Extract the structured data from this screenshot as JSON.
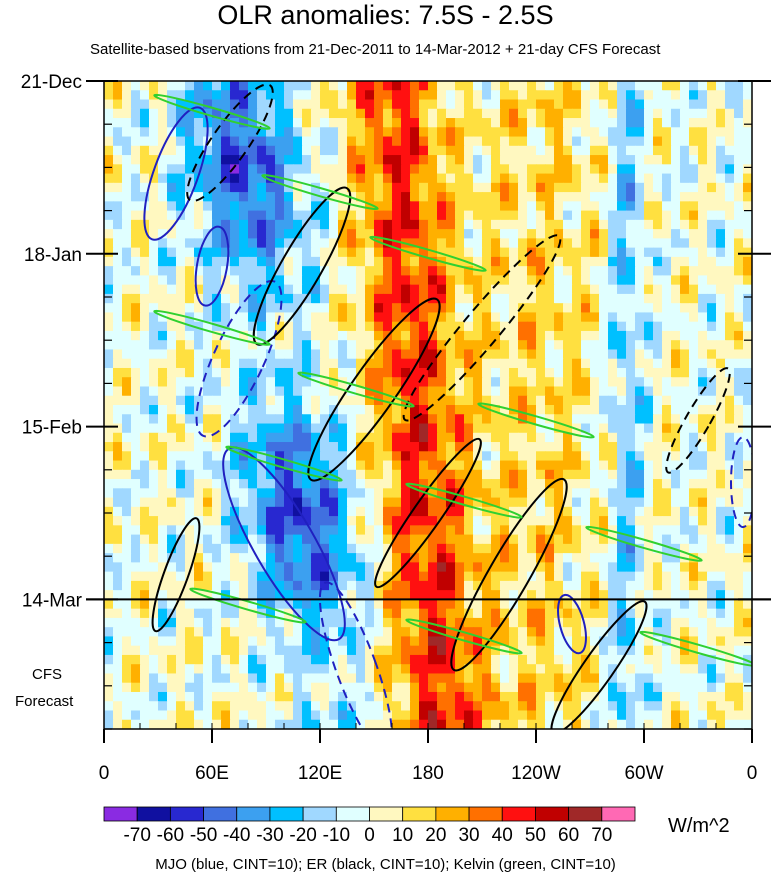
{
  "chart_data": {
    "type": "heatmap",
    "title": "OLR anomalies: 7.5S - 2.5S",
    "subtitle": "Satellite-based bservations from 21-Dec-2011 to 14-Mar-2012 + 21-day CFS Forecast",
    "x_ticks": [
      {
        "lon": 0,
        "label": "0"
      },
      {
        "lon": 60,
        "label": "60E"
      },
      {
        "lon": 120,
        "label": "120E"
      },
      {
        "lon": 180,
        "label": "180"
      },
      {
        "lon": 240,
        "label": "120W"
      },
      {
        "lon": 300,
        "label": "60W"
      },
      {
        "lon": 360,
        "label": "0"
      }
    ],
    "x_range": [
      0,
      360
    ],
    "y_range_days": [
      0,
      105
    ],
    "y_ticks": [
      {
        "day": 0,
        "label": "21-Dec"
      },
      {
        "day": 28,
        "label": "18-Jan"
      },
      {
        "day": 56,
        "label": "15-Feb"
      },
      {
        "day": 84,
        "label": "14-Mar"
      }
    ],
    "forecast_start_day": 84,
    "forecast_label_line1": "CFS",
    "forecast_label_line2": "Forecast",
    "colorbar": {
      "levels": [
        "-70",
        "-60",
        "-50",
        "-40",
        "-30",
        "-20",
        "-10",
        "0",
        "10",
        "20",
        "30",
        "40",
        "50",
        "60",
        "70"
      ],
      "colors": [
        "#8a2be2",
        "#1010a0",
        "#2828d0",
        "#4070e0",
        "#3ca0f0",
        "#00c0ff",
        "#a0d8ff",
        "#e0ffff",
        "#fff8c0",
        "#ffe040",
        "#ffb000",
        "#ff7000",
        "#ff1010",
        "#c00000",
        "#a02828",
        "#ff69b4"
      ],
      "units": "W/m^2"
    },
    "overlay_legend": "MJO (blue, CINT=10); ER (black, CINT=10); Kelvin (green, CINT=10)",
    "overlay_colors": {
      "mjo": "#2020c0",
      "er": "#000000",
      "kelvin": "#30d030"
    }
  }
}
